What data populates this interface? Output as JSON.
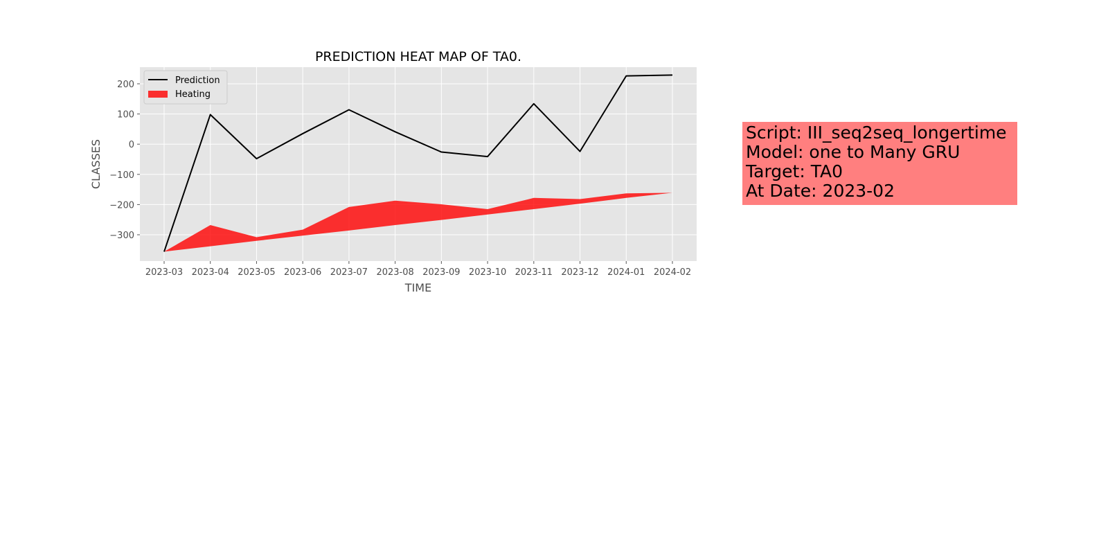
{
  "chart_data": {
    "type": "line",
    "title": "PREDICTION HEAT MAP OF TA0.",
    "xlabel": "TIME",
    "ylabel": "CLASSES",
    "categories": [
      "2023-03",
      "2023-04",
      "2023-05",
      "2023-06",
      "2023-07",
      "2023-08",
      "2023-09",
      "2023-10",
      "2023-11",
      "2023-12",
      "2024-01",
      "2024-02"
    ],
    "yticks": [
      200,
      100,
      0,
      -100,
      -200,
      -300
    ],
    "ytick_labels": [
      "200",
      "100",
      "0",
      "−100",
      "−200",
      "−300"
    ],
    "ylim": [
      -360,
      255
    ],
    "grid": true,
    "legend_position": "upper-left",
    "series": [
      {
        "name": "Prediction",
        "kind": "line",
        "color": "#000000",
        "values": [
          -356,
          98,
          -48,
          35,
          114,
          41,
          -26,
          -41,
          134,
          -24,
          226,
          229
        ]
      },
      {
        "name": "Heating",
        "kind": "fill_between",
        "color": "#ff0000",
        "upper": [
          -356,
          -268,
          -308,
          -283,
          -208,
          -187,
          -199,
          -215,
          -178,
          -182,
          -163,
          -161
        ],
        "lower": [
          -356,
          -338,
          -320,
          -303,
          -286,
          -268,
          -251,
          -233,
          -215,
          -197,
          -178,
          -161
        ]
      }
    ]
  },
  "info_box": {
    "line1": "Script: III_seq2seq_longertime",
    "line2": "Model: one to Many GRU",
    "line3": "Target: TA0",
    "line4": "At Date: 2023-02"
  },
  "colors": {
    "plot_bg": "#e5e5e5",
    "grid": "#ffffff",
    "info_box_bg": "#ff7f7f"
  }
}
